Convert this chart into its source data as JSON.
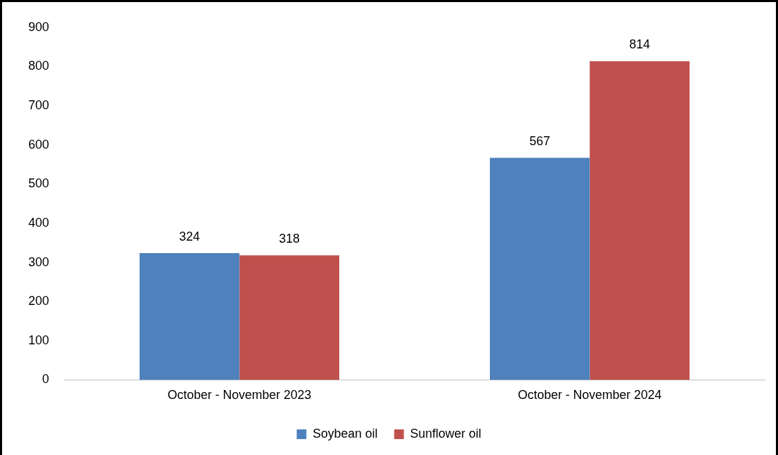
{
  "chart_data": {
    "type": "bar",
    "categories": [
      "October - November 2023",
      "October - November 2024"
    ],
    "series": [
      {
        "name": "Soybean oil",
        "color": "#4f81bd",
        "values": [
          324,
          567
        ]
      },
      {
        "name": "Sunflower oil",
        "color": "#c0504d",
        "values": [
          318,
          814
        ]
      }
    ],
    "ylim": [
      0,
      900
    ],
    "yticks": [
      0,
      100,
      200,
      300,
      400,
      500,
      600,
      700,
      800,
      900
    ],
    "grid": false,
    "legend": "bottom",
    "data_labels": true
  }
}
